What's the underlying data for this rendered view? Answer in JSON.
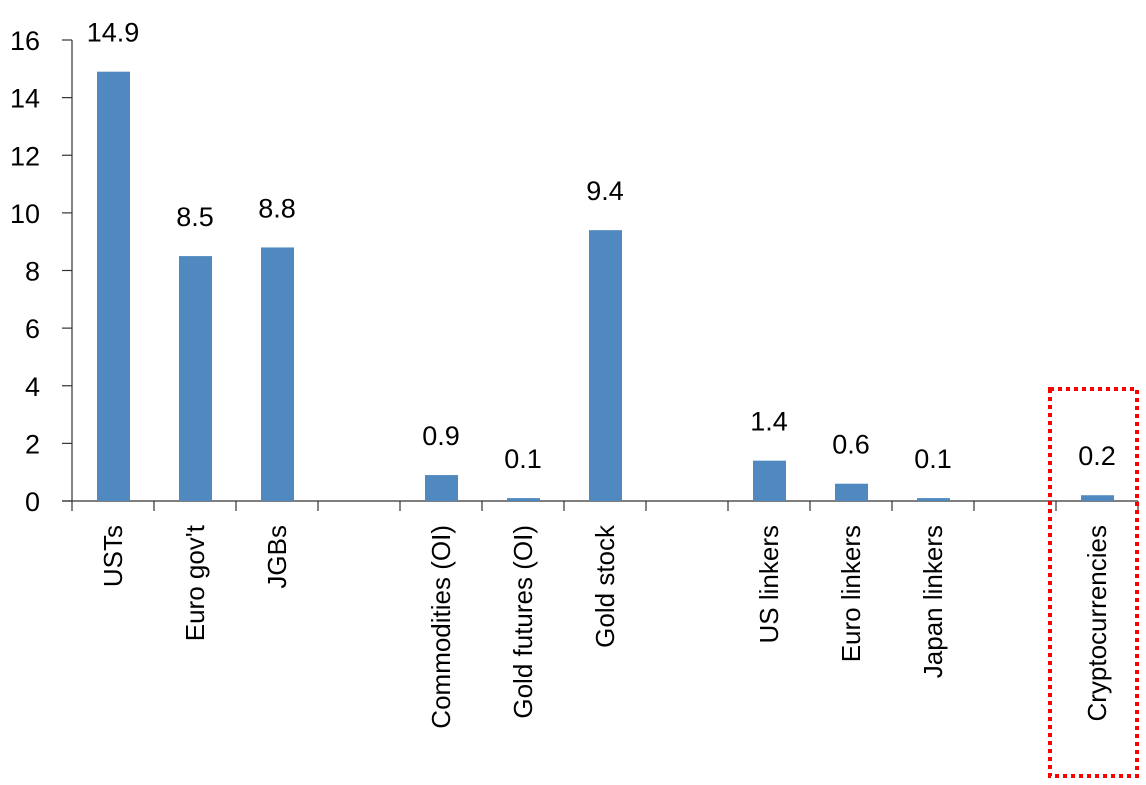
{
  "chart_data": {
    "type": "bar",
    "title": "",
    "xlabel": "",
    "ylabel": "",
    "ylim": [
      0,
      16
    ],
    "yticks": [
      0,
      2,
      4,
      6,
      8,
      10,
      12,
      14,
      16
    ],
    "grid": false,
    "categories": [
      "USTs",
      "Euro gov't",
      "JGBs",
      "",
      "Commodities (OI)",
      "Gold futures (OI)",
      "Gold stock",
      "",
      "US linkers",
      "Euro linkers",
      "Japan linkers",
      "",
      "Cryptocurrencies"
    ],
    "values": [
      14.9,
      8.5,
      8.8,
      null,
      0.9,
      0.1,
      9.4,
      null,
      1.4,
      0.6,
      0.1,
      null,
      0.2
    ],
    "data_labels": [
      "14.9",
      "8.5",
      "8.8",
      "",
      "0.9",
      "0.1",
      "9.4",
      "",
      "1.4",
      "0.6",
      "0.1",
      "",
      "0.2"
    ],
    "bar_color": "#4f89bf",
    "highlight": {
      "category": "Cryptocurrencies",
      "style": "red dotted box",
      "color": "#ff0000"
    }
  }
}
